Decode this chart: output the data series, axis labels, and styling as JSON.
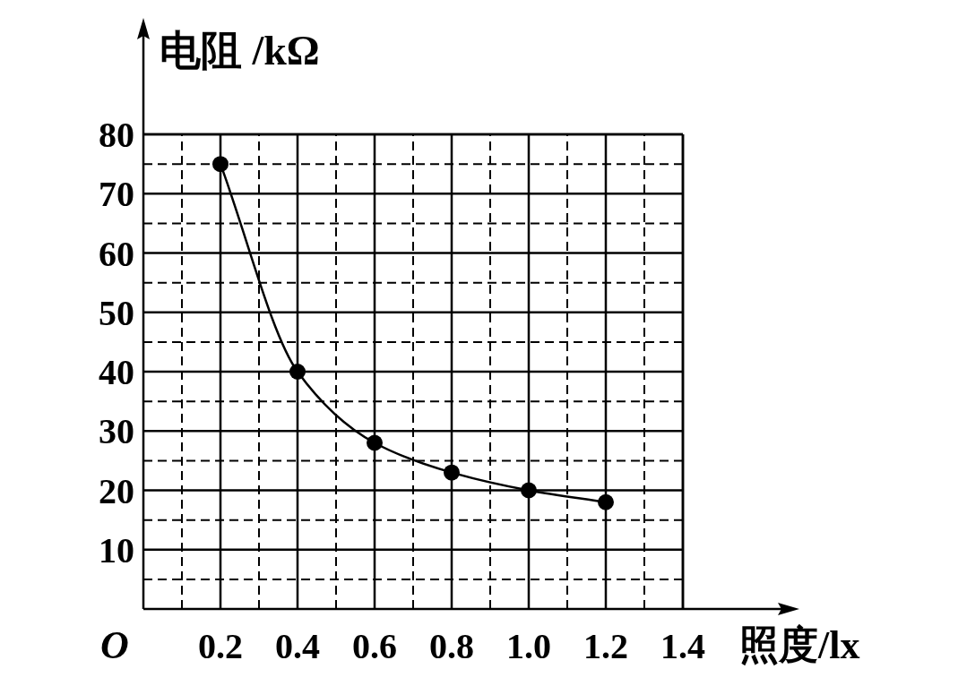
{
  "chart_data": {
    "type": "line",
    "xlabel": "照度/lx",
    "ylabel": "电阻 /kΩ",
    "x": [
      0.2,
      0.4,
      0.6,
      0.8,
      1.0,
      1.2
    ],
    "series": [
      {
        "color": "#000000",
        "values": [
          75,
          40,
          28,
          23,
          20,
          18
        ]
      }
    ],
    "xlim": [
      0,
      1.4
    ],
    "ylim": [
      0,
      80
    ],
    "annotations": [
      "O"
    ],
    "xticks": [
      {
        "value": 0.1,
        "label": null
      },
      {
        "value": 0.2,
        "label": "0.2"
      },
      {
        "value": 0.3,
        "label": null
      },
      {
        "value": 0.4,
        "label": "0.4"
      },
      {
        "value": 0.5,
        "label": null
      },
      {
        "value": 0.6,
        "label": "0.6"
      },
      {
        "value": 0.7,
        "label": null
      },
      {
        "value": 0.8,
        "label": "0.8"
      },
      {
        "value": 0.9,
        "label": null
      },
      {
        "value": 1.0,
        "label": "1.0"
      },
      {
        "value": 1.1,
        "label": null
      },
      {
        "value": 1.2,
        "label": "1.2"
      },
      {
        "value": 1.3,
        "label": null
      },
      {
        "value": 1.4,
        "label": "1.4"
      }
    ],
    "yticks": [
      {
        "value": 5,
        "label": null
      },
      10,
      {
        "value": 15,
        "label": null
      },
      20,
      {
        "value": 25,
        "label": null
      },
      30,
      {
        "value": 35,
        "label": null
      },
      40,
      {
        "value": 45,
        "label": null
      },
      50,
      {
        "value": 55,
        "label": null
      },
      60,
      {
        "value": 65,
        "label": null
      },
      70,
      {
        "value": 75,
        "label": null
      },
      80
    ],
    "grid": true,
    "marker": "circle",
    "line_style": "solid"
  }
}
